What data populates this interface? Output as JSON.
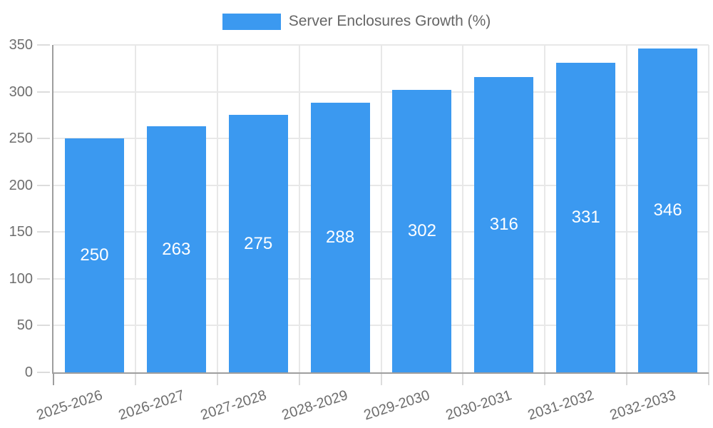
{
  "legend": {
    "label": "Server Enclosures Growth (%)"
  },
  "chart_data": {
    "type": "bar",
    "title": "",
    "xlabel": "",
    "ylabel": "",
    "series_name": "Server Enclosures Growth (%)",
    "categories": [
      "2025-2026",
      "2026-2027",
      "2027-2028",
      "2028-2029",
      "2029-2030",
      "2030-2031",
      "2031-2032",
      "2032-2033"
    ],
    "values": [
      250,
      263,
      275,
      288,
      302,
      316,
      331,
      346
    ],
    "bar_labels": [
      "250",
      "263",
      "275",
      "288",
      "302",
      "316",
      "331",
      "346"
    ],
    "ylim": [
      0,
      350
    ],
    "yticks": [
      0,
      50,
      100,
      150,
      200,
      250,
      300,
      350
    ],
    "grid": "on",
    "legend_position": "top"
  },
  "colors": {
    "bar": "#3b99f0",
    "bar_label": "#ffffff",
    "axis_line": "#9e9e9e",
    "grid_line": "#e8e8e8",
    "tick_line": "#dcdcdc",
    "axis_label": "#6e6e6e",
    "legend_text": "#666666",
    "background": "#ffffff"
  }
}
